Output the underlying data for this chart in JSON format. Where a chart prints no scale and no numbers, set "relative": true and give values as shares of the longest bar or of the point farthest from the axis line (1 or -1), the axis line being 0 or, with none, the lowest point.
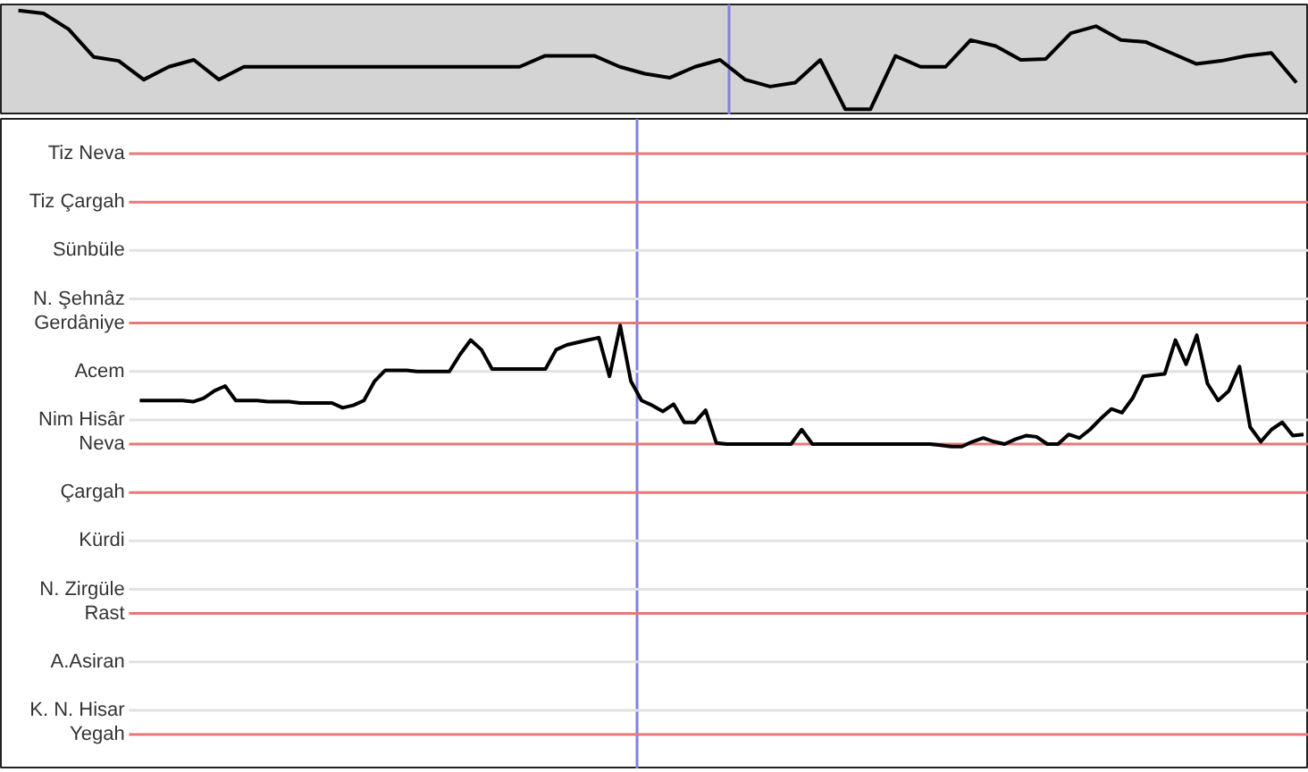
{
  "chart_data": [
    {
      "type": "line",
      "relative": true,
      "categories": [
        null,
        null,
        null,
        null,
        null,
        null,
        null,
        null,
        null,
        null,
        null,
        null,
        null,
        null,
        null,
        null,
        null,
        null,
        null,
        null,
        null,
        null,
        null,
        null,
        null,
        null,
        null,
        null,
        null,
        null,
        null,
        null,
        null,
        null,
        null,
        null,
        null,
        null,
        null,
        null,
        null,
        null,
        null,
        null,
        null,
        null,
        null,
        null,
        null,
        null,
        null,
        null
      ],
      "series": [
        {
          "color": "#000000",
          "values": [
            1.0,
            0.97,
            0.81,
            0.53,
            0.49,
            0.3,
            0.43,
            0.5,
            0.3,
            0.43,
            0.43,
            0.43,
            0.43,
            0.43,
            0.43,
            0.43,
            0.43,
            0.43,
            0.43,
            0.43,
            0.43,
            0.54,
            0.54,
            0.54,
            0.43,
            0.36,
            0.32,
            0.43,
            0.5,
            0.3,
            0.23,
            0.27,
            0.5,
            0,
            0,
            0.54,
            0.43,
            0.43,
            0.7,
            0.64,
            0.5,
            0.51,
            0.77,
            0.84,
            0.7,
            0.68,
            0.57,
            0.46,
            0.49,
            0.54,
            0.57,
            0.27
          ]
        }
      ]
    },
    {
      "type": "line",
      "relative": true,
      "categories": [
        null,
        null,
        null,
        null,
        null,
        null,
        null,
        null,
        null,
        null,
        null,
        null,
        null,
        null,
        null,
        null,
        null,
        null,
        null,
        null,
        null,
        null,
        null,
        null,
        null,
        null,
        null,
        null,
        null,
        null,
        null,
        null,
        null,
        null,
        null,
        null,
        null,
        null,
        null,
        null,
        null,
        null,
        null,
        null,
        null,
        null,
        null,
        null,
        null,
        null,
        null,
        null,
        null,
        null,
        null,
        null,
        null,
        null,
        null,
        null,
        null,
        null,
        null,
        null,
        null,
        null,
        null,
        null,
        null,
        null,
        null,
        null,
        null,
        null,
        null,
        null,
        null,
        null,
        null,
        null,
        null,
        null,
        null,
        null,
        null,
        null,
        null,
        null,
        null,
        null,
        null,
        null,
        null,
        null,
        null,
        null,
        null,
        null,
        null,
        null,
        null,
        null,
        null,
        null,
        null,
        null,
        null,
        null,
        null,
        null
      ],
      "series": [
        {
          "color": "#000000",
          "values": [
            0.38,
            0.38,
            0.38,
            0.38,
            0.38,
            0.37,
            0.4,
            0.46,
            0.5,
            0.38,
            0.38,
            0.38,
            0.37,
            0.37,
            0.37,
            0.36,
            0.36,
            0.36,
            0.36,
            0.32,
            0.34,
            0.38,
            0.54,
            0.63,
            0.63,
            0.63,
            0.62,
            0.62,
            0.62,
            0.62,
            0.76,
            0.88,
            0.8,
            0.64,
            0.64,
            0.64,
            0.64,
            0.64,
            0.64,
            0.8,
            0.84,
            0.86,
            0.88,
            0.9,
            0.58,
            1.0,
            0.54,
            0.38,
            0.34,
            0.29,
            0.35,
            0.2,
            0.2,
            0.3,
            0.03,
            0.02,
            0.02,
            0.02,
            0.02,
            0.02,
            0.02,
            0.02,
            0.14,
            0.02,
            0.02,
            0.02,
            0.02,
            0.02,
            0.02,
            0.02,
            0.02,
            0.02,
            0.02,
            0.02,
            0.02,
            0.01,
            0,
            0,
            0.04,
            0.07,
            0.04,
            0.02,
            0.06,
            0.09,
            0.08,
            0.02,
            0.02,
            0.1,
            0.07,
            0.14,
            0.23,
            0.31,
            0.28,
            0.4,
            0.58,
            0.59,
            0.6,
            0.88,
            0.68,
            0.92,
            0.52,
            0.38,
            0.46,
            0.66,
            0.16,
            0.04,
            0.14,
            0.2,
            0.09,
            0.1
          ]
        }
      ],
      "ref_lines": [
        {
          "axis": "y",
          "value": 2.42,
          "label": "Tiz Neva",
          "color": "#e87878"
        },
        {
          "axis": "y",
          "value": 2.02,
          "label": "Tiz Çargah",
          "color": "#e87878"
        },
        {
          "axis": "y",
          "value": 1.62,
          "label": "Sünbüle",
          "color": "#e2e2e2"
        },
        {
          "axis": "y",
          "value": 1.22,
          "label": "N. Şehnâz",
          "color": "#e2e2e2"
        },
        {
          "axis": "y",
          "value": 1.02,
          "label": "Gerdâniye",
          "color": "#e87878"
        },
        {
          "axis": "y",
          "value": 0.62,
          "label": "Acem",
          "color": "#e2e2e2"
        },
        {
          "axis": "y",
          "value": 0.22,
          "label": "Nim Hisâr",
          "color": "#e2e2e2"
        },
        {
          "axis": "y",
          "value": 0.02,
          "label": "Neva",
          "color": "#e87878"
        },
        {
          "axis": "y",
          "value": -0.38,
          "label": "Çargah",
          "color": "#e87878"
        },
        {
          "axis": "y",
          "value": -0.78,
          "label": "Kürdi",
          "color": "#e2e2e2"
        },
        {
          "axis": "y",
          "value": -1.18,
          "label": "N. Zirgüle",
          "color": "#e2e2e2"
        },
        {
          "axis": "y",
          "value": -1.38,
          "label": "Rast",
          "color": "#e87878"
        },
        {
          "axis": "y",
          "value": -1.78,
          "label": "A.Asiran",
          "color": "#e2e2e2"
        },
        {
          "axis": "y",
          "value": -2.18,
          "label": "K. N. Hisar",
          "color": "#e2e2e2"
        },
        {
          "axis": "y",
          "value": -2.38,
          "label": "Yegah",
          "color": "#e87878"
        }
      ]
    }
  ]
}
